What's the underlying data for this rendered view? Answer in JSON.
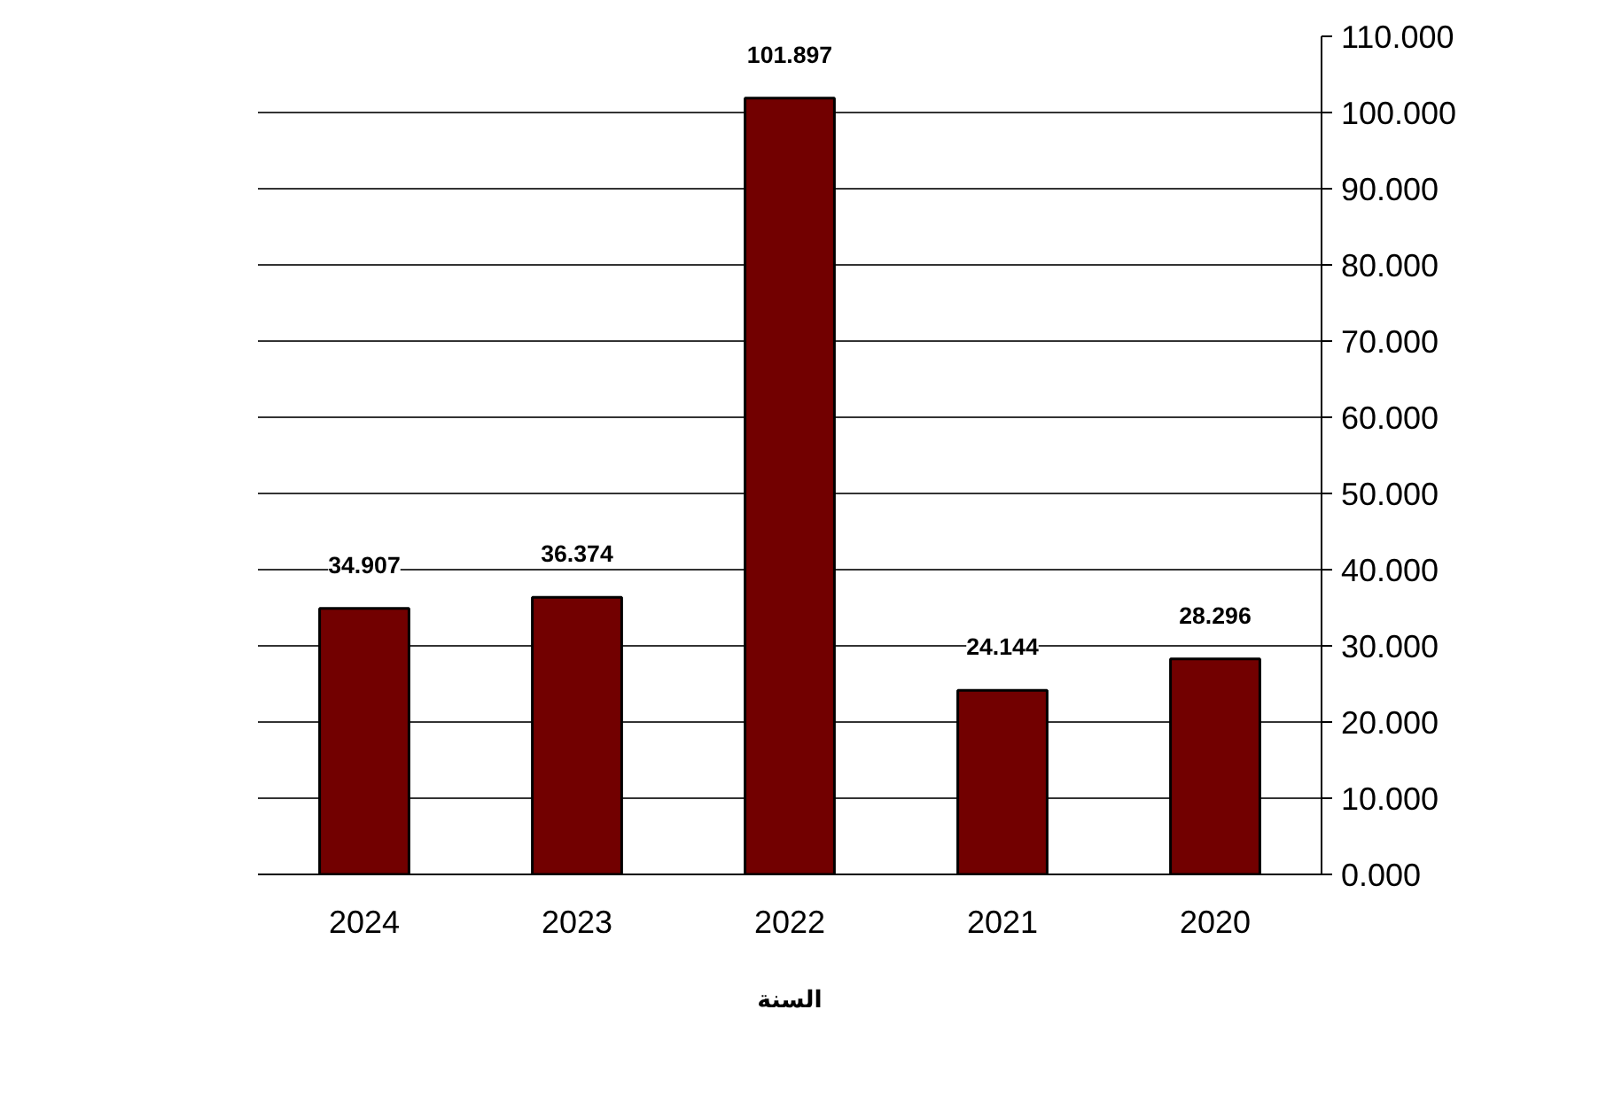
{
  "chart_data": {
    "type": "bar",
    "xlabel": "السنة",
    "categories": [
      "2024",
      "2023",
      "2022",
      "2021",
      "2020"
    ],
    "values": [
      34.907,
      36.374,
      101.897,
      24.144,
      28.296
    ],
    "color": "#720000",
    "ylim": [
      0,
      110
    ],
    "yticks": [
      {
        "value": 0,
        "label": "0.000"
      },
      {
        "value": 10,
        "label": "10.000"
      },
      {
        "value": 20,
        "label": "20.000"
      },
      {
        "value": 30,
        "label": "30.000"
      },
      {
        "value": 40,
        "label": "40.000"
      },
      {
        "value": 50,
        "label": "50.000"
      },
      {
        "value": 60,
        "label": "60.000"
      },
      {
        "value": 70,
        "label": "70.000"
      },
      {
        "value": 80,
        "label": "80.000"
      },
      {
        "value": 90,
        "label": "90.000"
      },
      {
        "value": 100,
        "label": "100.000"
      },
      {
        "value": 110,
        "label": "110.000"
      }
    ],
    "grid": "y",
    "data_labels": true
  }
}
